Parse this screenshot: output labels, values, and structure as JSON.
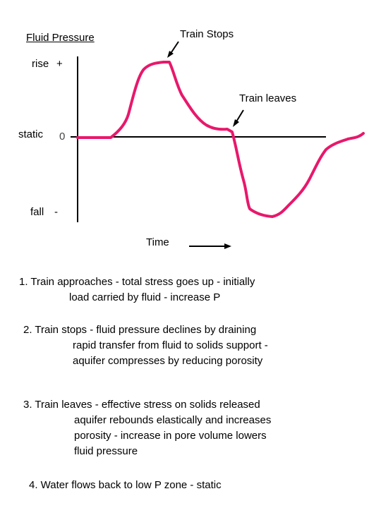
{
  "diagram": {
    "title": "Fluid Pressure",
    "annotations": {
      "train_stops": "Train Stops",
      "train_leaves": "Train leaves"
    },
    "y_labels": {
      "rise": "rise",
      "rise_sign": "+",
      "static": "static",
      "zero": "0",
      "fall": "fall",
      "fall_sign": "-"
    },
    "x_label": "Time",
    "curve_color": "#e8186b"
  },
  "notes": [
    {
      "line1": "1. Train approaches - total stress goes up - initially",
      "rest": [
        "load carried by fluid - increase P"
      ]
    },
    {
      "line1": "2. Train stops - fluid pressure declines by draining",
      "rest": [
        "rapid transfer from fluid to solids support -",
        "aquifer compresses by reducing porosity"
      ]
    },
    {
      "line1": "3. Train leaves - effective stress on solids released",
      "rest": [
        "aquifer rebounds elastically and increases",
        "porosity - increase in pore volume lowers",
        "fluid pressure"
      ]
    },
    {
      "line1": "4. Water flows back to low P zone - static",
      "rest": []
    }
  ]
}
